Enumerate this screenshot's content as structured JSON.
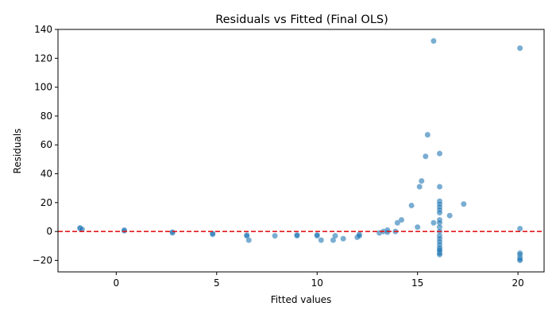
{
  "chart_data": {
    "type": "scatter",
    "title": "Residuals vs Fitted (Final OLS)",
    "xlabel": "Fitted values",
    "ylabel": "Residuals",
    "xlim": [
      -2.9,
      21.3
    ],
    "ylim": [
      -28,
      140
    ],
    "xticks": [
      0,
      5,
      10,
      15,
      20
    ],
    "yticks": [
      -20,
      0,
      20,
      40,
      60,
      80,
      100,
      120,
      140
    ],
    "grid": false,
    "reference_line": {
      "y": 0,
      "style": "dashed",
      "color": "#e31a1c"
    },
    "point_color": "#1f77b4",
    "series": [
      {
        "x": [
          -1.8,
          -1.8,
          -1.7,
          0.4,
          0.4,
          2.8,
          2.8,
          4.8,
          4.8,
          6.5,
          6.5,
          6.6,
          7.9,
          9.0,
          9.0,
          10.0,
          10.0,
          10.2,
          10.8,
          10.9,
          11.3,
          12.0,
          12.1,
          12.1,
          13.1,
          13.3,
          13.5,
          13.5,
          13.9,
          14.0,
          14.2,
          14.7,
          15.0,
          15.1,
          15.2,
          15.4,
          15.5,
          15.8,
          15.8,
          16.1,
          16.1,
          16.1,
          16.1,
          16.1,
          16.1,
          16.1,
          16.1,
          16.1,
          16.1,
          16.1,
          16.1,
          16.1,
          16.1,
          16.1,
          16.1,
          16.1,
          16.1,
          16.1,
          16.1,
          16.1,
          16.6,
          17.3,
          20.1,
          20.1,
          20.1,
          20.1,
          20.1,
          20.1,
          20.1
        ],
        "y": [
          2,
          2.5,
          1.5,
          1,
          0.5,
          -1,
          -0.5,
          -2,
          -1.5,
          -2.5,
          -3,
          -6,
          -3,
          -3,
          -2.5,
          -3,
          -2.5,
          -6,
          -6,
          -3,
          -5,
          -4,
          -2,
          -3,
          -1,
          0,
          1,
          -0.5,
          0,
          6,
          8,
          18,
          3,
          31,
          35,
          52,
          67,
          6,
          132,
          54,
          31,
          21,
          19,
          17,
          15,
          13,
          8,
          6,
          3,
          0,
          -3,
          -5,
          -7,
          -9,
          -11,
          -12,
          -14,
          -15,
          -16,
          -13,
          11,
          19,
          127,
          2,
          -15,
          -16,
          -18,
          -19,
          -20
        ]
      }
    ]
  }
}
